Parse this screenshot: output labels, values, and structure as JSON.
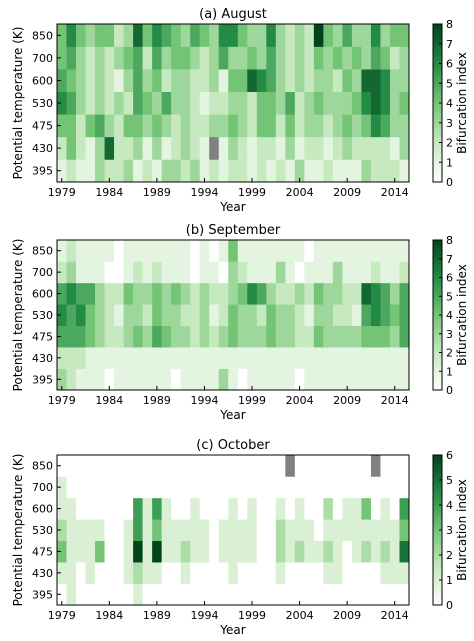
{
  "figure": {
    "colors": {
      "scale_low": "#ffffff",
      "scale_high": "#00441b",
      "missing": "#808080"
    }
  },
  "chart_data": [
    {
      "type": "heatmap",
      "title": "(a) August",
      "xlabel": "Year",
      "ylabel": "Potential temperature (K)",
      "colorbar_label": "Bifurcation index",
      "colorbar_ticks": [
        "0",
        "1",
        "2",
        "3",
        "4",
        "5",
        "6",
        "7",
        "8"
      ],
      "vmin": 0,
      "vmax": 8,
      "x": [
        1979,
        1980,
        1981,
        1982,
        1983,
        1984,
        1985,
        1986,
        1987,
        1988,
        1989,
        1990,
        1991,
        1992,
        1993,
        1994,
        1995,
        1996,
        1997,
        1998,
        1999,
        2000,
        2001,
        2002,
        2003,
        2004,
        2005,
        2006,
        2007,
        2008,
        2009,
        2010,
        2011,
        2012,
        2013,
        2014,
        2015
      ],
      "xticks": [
        "1979",
        "1984",
        "1989",
        "1994",
        "1999",
        "2004",
        "2009",
        "2014"
      ],
      "y": [
        "395",
        "430",
        "475",
        "530",
        "600",
        "700",
        "850"
      ],
      "yticks": [
        "850",
        "700",
        "600",
        "530",
        "475",
        "430",
        "395"
      ],
      "values": [
        [
          1,
          2,
          1,
          1,
          3,
          2,
          2,
          3,
          1,
          2,
          1,
          3,
          3,
          2,
          3,
          1,
          2,
          1,
          2,
          2,
          1,
          2,
          1,
          2,
          1,
          3,
          1,
          1,
          2,
          1,
          1,
          1,
          3,
          2,
          2,
          2,
          1
        ],
        [
          2,
          4,
          2,
          1,
          3,
          7,
          2,
          2,
          3,
          1,
          3,
          1,
          2,
          3,
          2,
          1,
          null,
          1,
          3,
          2,
          1,
          2,
          2,
          1,
          3,
          1,
          2,
          2,
          1,
          2,
          3,
          2,
          2,
          2,
          2,
          1,
          3
        ],
        [
          4,
          4,
          2,
          4,
          5,
          3,
          2,
          4,
          4,
          3,
          4,
          3,
          2,
          3,
          2,
          2,
          3,
          3,
          4,
          3,
          2,
          4,
          4,
          2,
          4,
          2,
          3,
          3,
          2,
          3,
          4,
          3,
          4,
          6,
          5,
          3,
          3
        ],
        [
          6,
          5,
          3,
          2,
          3,
          2,
          3,
          2,
          5,
          4,
          3,
          5,
          3,
          3,
          2,
          1,
          2,
          2,
          3,
          3,
          2,
          4,
          4,
          3,
          5,
          2,
          3,
          4,
          3,
          3,
          3,
          4,
          6,
          7,
          6,
          3,
          4
        ],
        [
          5,
          4,
          3,
          2,
          3,
          2,
          1,
          3,
          5,
          3,
          4,
          2,
          3,
          3,
          2,
          2,
          3,
          1,
          4,
          4,
          7,
          6,
          5,
          3,
          2,
          3,
          2,
          3,
          3,
          2,
          4,
          3,
          7,
          7,
          6,
          3,
          3
        ],
        [
          4,
          5,
          3,
          2,
          3,
          2,
          3,
          4,
          5,
          2,
          5,
          3,
          4,
          4,
          3,
          2,
          3,
          5,
          3,
          3,
          4,
          3,
          5,
          3,
          2,
          3,
          2,
          4,
          3,
          4,
          3,
          4,
          3,
          5,
          4,
          2,
          3
        ],
        [
          4,
          6,
          4,
          3,
          4,
          4,
          2,
          3,
          7,
          4,
          6,
          5,
          4,
          3,
          5,
          4,
          3,
          6,
          6,
          4,
          3,
          3,
          6,
          3,
          2,
          3,
          2,
          8,
          4,
          3,
          5,
          3,
          3,
          6,
          3,
          4,
          4
        ]
      ]
    },
    {
      "type": "heatmap",
      "title": "(b) September",
      "xlabel": "Year",
      "ylabel": "Potential temperature (K)",
      "colorbar_label": "Bifurcation index",
      "colorbar_ticks": [
        "0",
        "1",
        "2",
        "3",
        "4",
        "5",
        "6",
        "7",
        "8"
      ],
      "vmin": 0,
      "vmax": 8,
      "x": [
        1979,
        1980,
        1981,
        1982,
        1983,
        1984,
        1985,
        1986,
        1987,
        1988,
        1989,
        1990,
        1991,
        1992,
        1993,
        1994,
        1995,
        1996,
        1997,
        1998,
        1999,
        2000,
        2001,
        2002,
        2003,
        2004,
        2005,
        2006,
        2007,
        2008,
        2009,
        2010,
        2011,
        2012,
        2013,
        2014,
        2015
      ],
      "xticks": [
        "1979",
        "1984",
        "1989",
        "1994",
        "1999",
        "2004",
        "2009",
        "2014"
      ],
      "y": [
        "395",
        "430",
        "475",
        "530",
        "600",
        "700",
        "850"
      ],
      "yticks": [
        "850",
        "700",
        "600",
        "530",
        "475",
        "430",
        "395"
      ],
      "values": [
        [
          3,
          2,
          1,
          1,
          1,
          0,
          1,
          1,
          1,
          1,
          1,
          1,
          0,
          1,
          1,
          1,
          1,
          3,
          1,
          0,
          1,
          1,
          1,
          1,
          1,
          0,
          1,
          1,
          1,
          1,
          1,
          1,
          1,
          1,
          1,
          1,
          1
        ],
        [
          2,
          2,
          2,
          1,
          1,
          1,
          1,
          1,
          1,
          1,
          1,
          1,
          1,
          1,
          1,
          1,
          1,
          1,
          1,
          1,
          1,
          1,
          1,
          1,
          1,
          1,
          1,
          1,
          1,
          1,
          1,
          1,
          1,
          1,
          1,
          1,
          1
        ],
        [
          5,
          5,
          5,
          4,
          3,
          2,
          2,
          3,
          4,
          3,
          5,
          4,
          3,
          3,
          2,
          3,
          2,
          3,
          4,
          3,
          3,
          3,
          4,
          3,
          3,
          2,
          2,
          4,
          3,
          3,
          3,
          3,
          4,
          4,
          4,
          3,
          5
        ],
        [
          6,
          5,
          6,
          4,
          3,
          2,
          1,
          3,
          3,
          2,
          4,
          3,
          3,
          2,
          2,
          3,
          1,
          2,
          4,
          3,
          3,
          2,
          4,
          3,
          3,
          2,
          1,
          3,
          3,
          2,
          2,
          1,
          5,
          6,
          5,
          4,
          5
        ],
        [
          5,
          6,
          5,
          5,
          3,
          2,
          2,
          4,
          3,
          3,
          4,
          3,
          4,
          3,
          2,
          3,
          2,
          2,
          3,
          4,
          6,
          5,
          3,
          2,
          2,
          3,
          2,
          4,
          3,
          3,
          2,
          2,
          7,
          6,
          5,
          3,
          5
        ],
        [
          2,
          3,
          1,
          1,
          1,
          0,
          0,
          1,
          2,
          1,
          2,
          1,
          1,
          1,
          0,
          1,
          1,
          0,
          3,
          2,
          1,
          1,
          1,
          3,
          1,
          0,
          1,
          1,
          1,
          3,
          1,
          1,
          1,
          2,
          1,
          1,
          2
        ],
        [
          1,
          2,
          1,
          1,
          1,
          1,
          0,
          1,
          1,
          1,
          1,
          1,
          1,
          1,
          0,
          1,
          0,
          1,
          4,
          1,
          1,
          1,
          1,
          1,
          1,
          1,
          0,
          1,
          1,
          1,
          1,
          1,
          1,
          1,
          1,
          1,
          1
        ]
      ]
    },
    {
      "type": "heatmap",
      "title": "(c) October",
      "xlabel": "Year",
      "ylabel": "Potential temperature (K)",
      "colorbar_label": "Bifurcation index",
      "colorbar_ticks": [
        "0",
        "1",
        "2",
        "3",
        "4",
        "5",
        "6"
      ],
      "vmin": 0,
      "vmax": 6,
      "x": [
        1979,
        1980,
        1981,
        1982,
        1983,
        1984,
        1985,
        1986,
        1987,
        1988,
        1989,
        1990,
        1991,
        1992,
        1993,
        1994,
        1995,
        1996,
        1997,
        1998,
        1999,
        2000,
        2001,
        2002,
        2003,
        2004,
        2005,
        2006,
        2007,
        2008,
        2009,
        2010,
        2011,
        2012,
        2013,
        2014,
        2015
      ],
      "xticks": [
        "1979",
        "1984",
        "1989",
        "1994",
        "1999",
        "2004",
        "2009",
        "2014"
      ],
      "y": [
        "395",
        "430",
        "475",
        "530",
        "600",
        "700",
        "850"
      ],
      "yticks": [
        "850",
        "700",
        "600",
        "530",
        "475",
        "430",
        "395"
      ],
      "values": [
        [
          0,
          1,
          0,
          0,
          0,
          0,
          0,
          0,
          1,
          0,
          0,
          0,
          0,
          0,
          0,
          0,
          0,
          0,
          0,
          0,
          0,
          0,
          0,
          0,
          0,
          0,
          0,
          0,
          0,
          0,
          0,
          0,
          0,
          0,
          0,
          0,
          0
        ],
        [
          1,
          1,
          0,
          1,
          0,
          0,
          0,
          1,
          2,
          1,
          1,
          0,
          0,
          1,
          0,
          0,
          0,
          0,
          1,
          0,
          0,
          0,
          0,
          1,
          0,
          0,
          0,
          0,
          1,
          1,
          0,
          0,
          0,
          0,
          1,
          1,
          1
        ],
        [
          3,
          1,
          1,
          1,
          3,
          0,
          0,
          1,
          6,
          1,
          6,
          1,
          1,
          2,
          1,
          1,
          0,
          1,
          1,
          1,
          1,
          0,
          0,
          2,
          1,
          2,
          1,
          1,
          2,
          1,
          0,
          1,
          2,
          1,
          2,
          1,
          5
        ],
        [
          2,
          1,
          1,
          1,
          1,
          0,
          0,
          1,
          4,
          1,
          3,
          1,
          1,
          1,
          1,
          1,
          0,
          1,
          1,
          1,
          1,
          0,
          0,
          2,
          1,
          1,
          1,
          0,
          1,
          1,
          1,
          1,
          1,
          1,
          1,
          1,
          3
        ],
        [
          1,
          1,
          0,
          0,
          0,
          0,
          0,
          0,
          4,
          1,
          4,
          1,
          0,
          0,
          1,
          0,
          0,
          0,
          1,
          0,
          1,
          0,
          0,
          1,
          0,
          1,
          0,
          0,
          2,
          0,
          1,
          1,
          3,
          0,
          1,
          0,
          4
        ],
        [
          1,
          0,
          0,
          0,
          0,
          0,
          0,
          0,
          0,
          0,
          0,
          0,
          0,
          0,
          0,
          0,
          0,
          0,
          0,
          0,
          0,
          0,
          0,
          0,
          0,
          0,
          0,
          0,
          0,
          0,
          0,
          0,
          0,
          0,
          0,
          0,
          0
        ],
        [
          0,
          0,
          0,
          0,
          0,
          0,
          0,
          0,
          0,
          0,
          0,
          0,
          0,
          0,
          0,
          0,
          0,
          0,
          0,
          0,
          0,
          0,
          0,
          0,
          null,
          0,
          0,
          0,
          0,
          0,
          0,
          0,
          0,
          null,
          0,
          0,
          0
        ]
      ]
    }
  ]
}
